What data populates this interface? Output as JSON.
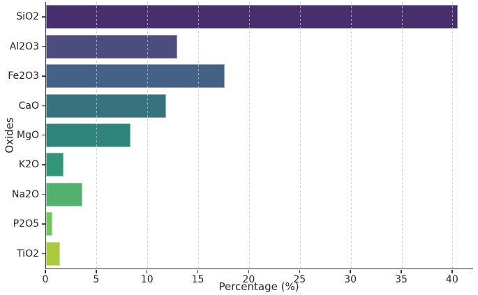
{
  "chart_data": {
    "type": "bar",
    "orientation": "horizontal",
    "title": "",
    "xlabel": "Percentage (%)",
    "ylabel": "Oxides",
    "categories": [
      "SiO2",
      "Al2O3",
      "Fe2O3",
      "CaO",
      "MgO",
      "K2O",
      "Na2O",
      "P2O5",
      "TiO2"
    ],
    "values": [
      40.5,
      12.9,
      17.6,
      11.8,
      8.3,
      1.7,
      3.6,
      0.6,
      1.4
    ],
    "bar_colors": [
      "#472f6d",
      "#4c4c7e",
      "#446286",
      "#36737f",
      "#2e8479",
      "#319677",
      "#53b170",
      "#74c35e",
      "#aac93c"
    ],
    "xlim": [
      0,
      42
    ],
    "xticks": [
      0,
      5,
      10,
      15,
      20,
      25,
      30,
      35,
      40
    ],
    "grid": "vertical-dashed",
    "grid_color": "#c3c3c3",
    "axis_color": "#333333",
    "text_color": "#262626",
    "background": "#ffffff",
    "legend": "none"
  }
}
